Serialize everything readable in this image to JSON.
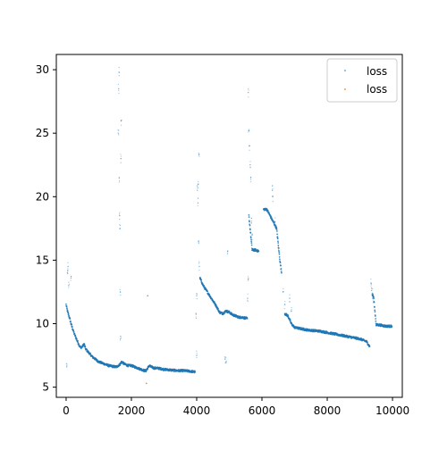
{
  "chart_data": {
    "type": "scatter",
    "title": "",
    "xlabel": "",
    "ylabel": "",
    "xlim": [
      -300,
      10300
    ],
    "ylim": [
      4.2,
      31.2
    ],
    "xticks": [
      0,
      2000,
      4000,
      6000,
      8000,
      10000
    ],
    "xtick_labels": [
      "0",
      "2000",
      "4000",
      "6000",
      "8000",
      "10000"
    ],
    "yticks": [
      5,
      10,
      15,
      20,
      25,
      30
    ],
    "ytick_labels": [
      "5",
      "10",
      "15",
      "20",
      "25",
      "30"
    ],
    "grid": false,
    "legend_position": "top-right",
    "series": [
      {
        "name": "loss",
        "color": "#1f77b4",
        "description_points": [
          [
            0,
            11.5
          ],
          [
            50,
            10.9
          ],
          [
            100,
            10.5
          ],
          [
            150,
            10.0
          ],
          [
            200,
            9.6
          ],
          [
            250,
            9.2
          ],
          [
            300,
            8.9
          ],
          [
            350,
            8.6
          ],
          [
            400,
            8.3
          ],
          [
            450,
            8.1
          ],
          [
            500,
            8.2
          ],
          [
            550,
            8.4
          ],
          [
            600,
            8.0
          ],
          [
            700,
            7.7
          ],
          [
            800,
            7.4
          ],
          [
            900,
            7.2
          ],
          [
            1000,
            7.0
          ],
          [
            1100,
            6.9
          ],
          [
            1200,
            6.8
          ],
          [
            1300,
            6.7
          ],
          [
            1400,
            6.65
          ],
          [
            1500,
            6.6
          ],
          [
            1550,
            6.6
          ],
          [
            1650,
            6.8
          ],
          [
            1700,
            7.0
          ],
          [
            1800,
            6.8
          ],
          [
            1900,
            6.7
          ],
          [
            2000,
            6.7
          ],
          [
            2100,
            6.6
          ],
          [
            2200,
            6.5
          ],
          [
            2300,
            6.4
          ],
          [
            2400,
            6.3
          ],
          [
            2450,
            6.3
          ],
          [
            2550,
            6.7
          ],
          [
            2600,
            6.6
          ],
          [
            2700,
            6.5
          ],
          [
            2800,
            6.5
          ],
          [
            2900,
            6.45
          ],
          [
            3000,
            6.4
          ],
          [
            3200,
            6.35
          ],
          [
            3400,
            6.3
          ],
          [
            3600,
            6.3
          ],
          [
            3800,
            6.25
          ],
          [
            3950,
            6.2
          ],
          [
            4100,
            13.6
          ],
          [
            4200,
            13.0
          ],
          [
            4300,
            12.6
          ],
          [
            4400,
            12.2
          ],
          [
            4500,
            11.8
          ],
          [
            4600,
            11.4
          ],
          [
            4700,
            10.9
          ],
          [
            4800,
            10.8
          ],
          [
            4900,
            11.0
          ],
          [
            5000,
            10.9
          ],
          [
            5100,
            10.7
          ],
          [
            5200,
            10.6
          ],
          [
            5300,
            10.5
          ],
          [
            5400,
            10.5
          ],
          [
            5550,
            10.4
          ],
          [
            5600,
            18.5
          ],
          [
            5700,
            15.8
          ],
          [
            5800,
            15.8
          ],
          [
            5900,
            15.7
          ],
          [
            6050,
            19.0
          ],
          [
            6150,
            19.0
          ],
          [
            6250,
            18.5
          ],
          [
            6350,
            18.0
          ],
          [
            6450,
            17.5
          ],
          [
            6550,
            15.0
          ],
          [
            6600,
            14.0
          ],
          [
            6700,
            10.8
          ],
          [
            6800,
            10.6
          ],
          [
            6900,
            10.0
          ],
          [
            7000,
            9.7
          ],
          [
            7200,
            9.6
          ],
          [
            7400,
            9.5
          ],
          [
            7600,
            9.45
          ],
          [
            7800,
            9.4
          ],
          [
            8000,
            9.3
          ],
          [
            8200,
            9.2
          ],
          [
            8400,
            9.1
          ],
          [
            8600,
            9.0
          ],
          [
            8800,
            8.9
          ],
          [
            9000,
            8.8
          ],
          [
            9200,
            8.6
          ],
          [
            9300,
            8.2
          ],
          [
            9380,
            12.3
          ],
          [
            9420,
            12.1
          ],
          [
            9500,
            9.9
          ],
          [
            9600,
            9.9
          ],
          [
            9700,
            9.85
          ],
          [
            9800,
            9.8
          ],
          [
            9900,
            9.8
          ],
          [
            9980,
            9.8
          ]
        ],
        "outlier_points": [
          [
            20,
            6.6
          ],
          [
            40,
            14.0
          ],
          [
            60,
            14.5
          ],
          [
            80,
            13.0
          ],
          [
            150,
            13.6
          ],
          [
            1600,
            25.0
          ],
          [
            1610,
            28.5
          ],
          [
            1620,
            29.8
          ],
          [
            1630,
            21.5
          ],
          [
            1640,
            18.5
          ],
          [
            1650,
            17.5
          ],
          [
            1660,
            12.5
          ],
          [
            1670,
            9.0
          ],
          [
            1680,
            23.0
          ],
          [
            1690,
            26.0
          ],
          [
            3980,
            10.8
          ],
          [
            4000,
            12.2
          ],
          [
            4020,
            20.5
          ],
          [
            4040,
            19.5
          ],
          [
            4060,
            16.5
          ],
          [
            4080,
            14.5
          ],
          [
            4000,
            7.5
          ],
          [
            4070,
            23.3
          ],
          [
            4050,
            21.0
          ],
          [
            4870,
            7.2
          ],
          [
            4900,
            7.0
          ],
          [
            4950,
            15.7
          ],
          [
            5580,
            28.2
          ],
          [
            5600,
            25.2
          ],
          [
            5620,
            24.0
          ],
          [
            5640,
            22.5
          ],
          [
            5660,
            21.5
          ],
          [
            5680,
            18.3
          ],
          [
            5700,
            17.0
          ],
          [
            5560,
            12.0
          ],
          [
            5580,
            13.5
          ],
          [
            6320,
            20.5
          ],
          [
            6330,
            20.0
          ],
          [
            6400,
            18.0
          ],
          [
            6500,
            16.0
          ],
          [
            6650,
            12.5
          ],
          [
            6700,
            11.5
          ],
          [
            6850,
            12.0
          ],
          [
            6900,
            11.0
          ],
          [
            9340,
            13.2
          ],
          [
            9360,
            12.8
          ],
          [
            9380,
            12.4
          ],
          [
            9400,
            12.0
          ]
        ]
      },
      {
        "name": "loss",
        "color": "#ff7f0e",
        "points": [
          [
            2500,
            12.2
          ],
          [
            2460,
            5.3
          ]
        ]
      }
    ]
  }
}
